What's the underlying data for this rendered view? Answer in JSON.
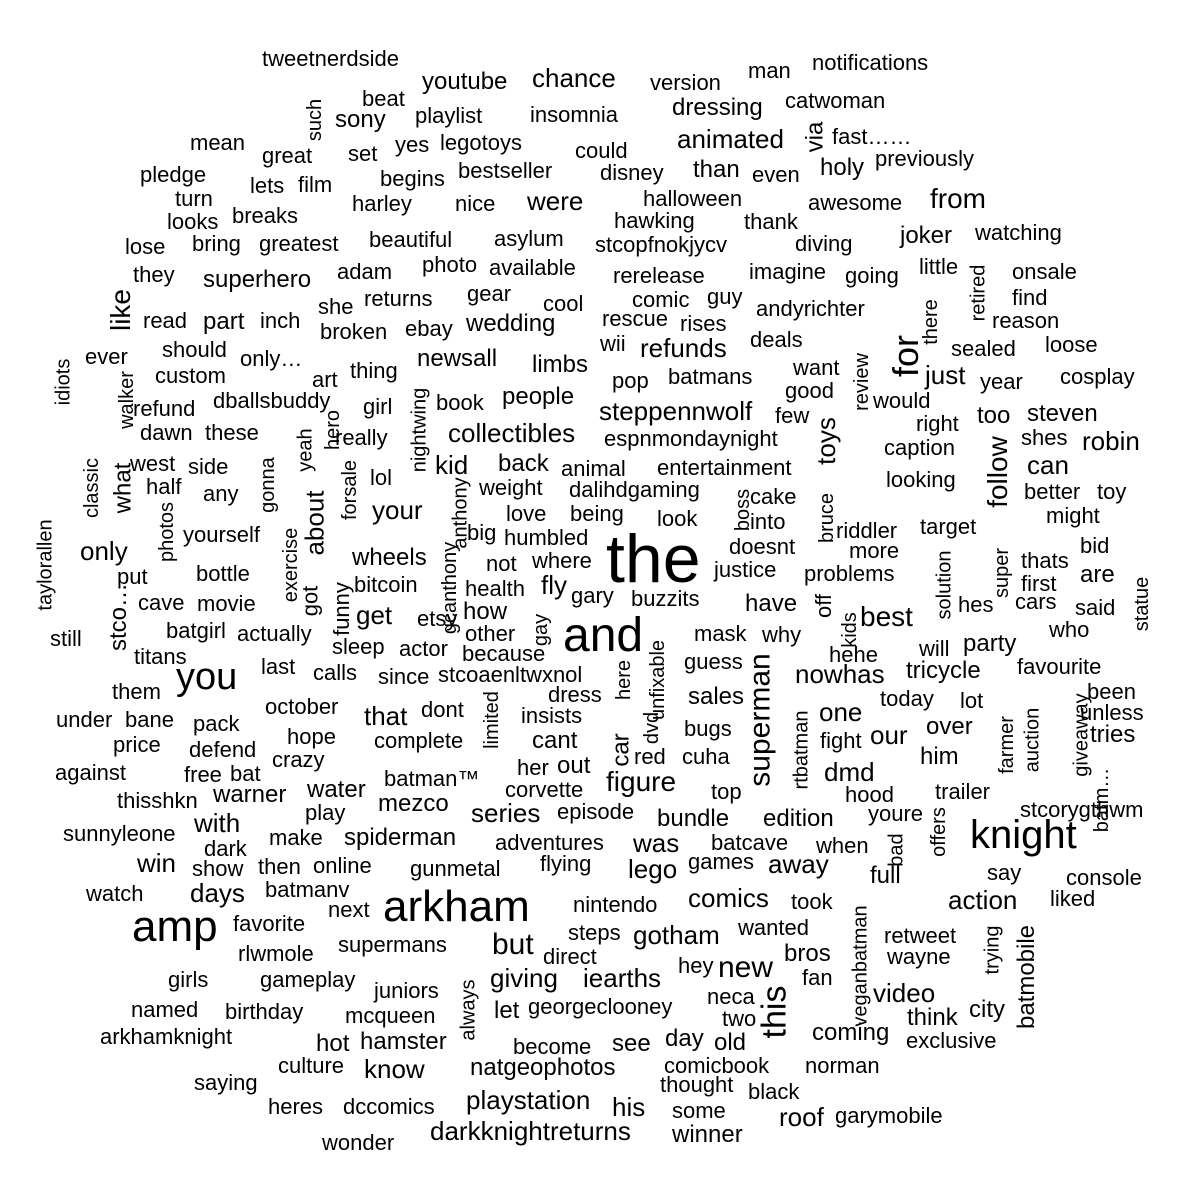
{
  "text_color": "#000000",
  "background_color": "#ffffff",
  "words": [
    "the",
    "and",
    "arkham",
    "amp",
    "knight",
    "you",
    "for",
    "this",
    "superman",
    "new",
    "like",
    "follow",
    "toys",
    "about",
    "video",
    "series",
    "figure",
    "batmobile",
    "darkknightreturns",
    "playstation",
    "youtube",
    "chance",
    "animated",
    "action",
    "giving",
    "comics",
    "refunds",
    "collectibles",
    "steppennwolf",
    "best",
    "gotham",
    "iearths",
    "win",
    "days",
    "robin",
    "kid",
    "can",
    "get",
    "your",
    "from",
    "what",
    "only",
    "tweetnerdside",
    "notifications",
    "man",
    "version",
    "beat",
    "playlist",
    "insomnia",
    "dressing",
    "catwoman",
    "sony",
    "such",
    "mean",
    "great",
    "set",
    "yes",
    "legotoys",
    "could",
    "fast……",
    "previously",
    "pledge",
    "lets",
    "film",
    "begins",
    "bestseller",
    "disney",
    "than",
    "even",
    "holy",
    "turn",
    "harley",
    "nice",
    "were",
    "halloween",
    "awesome",
    "looks",
    "breaks",
    "hawking",
    "thank",
    "lose",
    "bring",
    "greatest",
    "beautiful",
    "asylum",
    "stcopfnokjycv",
    "diving",
    "joker",
    "watching",
    "they",
    "superhero",
    "adam",
    "photo",
    "available",
    "rerelease",
    "imagine",
    "going",
    "little",
    "onsale",
    "retired",
    "she",
    "returns",
    "gear",
    "cool",
    "comic",
    "guy",
    "andyrichter",
    "there",
    "find",
    "read",
    "part",
    "inch",
    "broken",
    "ebay",
    "wedding",
    "rescue",
    "rises",
    "reason",
    "should",
    "only…",
    "newsall",
    "limbs",
    "wii",
    "deals",
    "sealed",
    "loose",
    "ever",
    "custom",
    "art",
    "thing",
    "want",
    "review",
    "just",
    "idiots",
    "walker",
    "refund",
    "dballsbuddy",
    "girl",
    "nightwing",
    "book",
    "people",
    "pop",
    "batmans",
    "good",
    "year",
    "cosplay",
    "dawn",
    "these",
    "hero",
    "really",
    "would",
    "too",
    "steven",
    "west",
    "yeah",
    "espnmondaynight",
    "few",
    "right",
    "shes",
    "half",
    "side",
    "lol",
    "animal",
    "entertainment",
    "caption",
    "any",
    "gonna",
    "back",
    "classic",
    "weight",
    "dalihdgaming",
    "looking",
    "better",
    "toy",
    "forsale",
    "photos",
    "anthony",
    "love",
    "being",
    "look",
    "cake",
    "bruce",
    "into",
    "boss",
    "might",
    "yourself",
    "humbled",
    "riddler",
    "target",
    "exercise",
    "big",
    "taylorallen",
    "wheels",
    "not",
    "where",
    "doesnt",
    "more",
    "bid",
    "thats",
    "put",
    "bitcoin",
    "health",
    "fly",
    "justice",
    "problems",
    "solution",
    "super",
    "first",
    "are",
    "bottle",
    "gcanthony",
    "cave",
    "movie",
    "got",
    "funny",
    "how",
    "gary",
    "buzzits",
    "have",
    "off",
    "kids",
    "hes",
    "cars",
    "said",
    "statue",
    "stco…",
    "batgirl",
    "actually",
    "etsy",
    "other",
    "gay",
    "mask",
    "why",
    "will",
    "party",
    "who",
    "still",
    "sleep",
    "actor",
    "because",
    "unfixable",
    "titans",
    "calls",
    "since",
    "stcoaenltwxnol",
    "guess",
    "hehe",
    "last",
    "nowhas",
    "tricycle",
    "favourite",
    "them",
    "dress",
    "here",
    "sales",
    "today",
    "lot",
    "been",
    "under",
    "bane",
    "pack",
    "october",
    "limited",
    "insists",
    "dvd",
    "one",
    "unless",
    "that",
    "dont",
    "bugs",
    "rtbatman",
    "over",
    "auction",
    "giveaway",
    "price",
    "defend",
    "hope",
    "complete",
    "cant",
    "car",
    "red",
    "cuha",
    "fight",
    "our",
    "tries",
    "crazy",
    "him",
    "farmer",
    "against",
    "free",
    "bat",
    "her",
    "out",
    "water",
    "batman™",
    "corvette",
    "top",
    "dmd",
    "hood",
    "trailer",
    "thisshkn",
    "warner",
    "play",
    "mezco",
    "episode",
    "bundle",
    "edition",
    "youre",
    "bad",
    "stcorygthwm",
    "sunnyleone",
    "dark",
    "make",
    "spiderman",
    "adventures",
    "batcave",
    "was",
    "when",
    "offers",
    "batm…",
    "with",
    "show",
    "then",
    "online",
    "gunmetal",
    "flying",
    "lego",
    "games",
    "away",
    "full",
    "say",
    "console",
    "watch",
    "batmanv",
    "nintendo",
    "took",
    "liked",
    "next",
    "favorite",
    "steps",
    "wanted",
    "veganbatman",
    "retweet",
    "rlwmole",
    "supermans",
    "direct",
    "but",
    "bros",
    "wayne",
    "trying",
    "girls",
    "gameplay",
    "hey",
    "fan",
    "juniors",
    "always",
    "neca",
    "city",
    "named",
    "birthday",
    "mcqueen",
    "let",
    "georgeclooney",
    "two",
    "think",
    "arkhamknight",
    "hot",
    "hamster",
    "become",
    "see",
    "day",
    "old",
    "coming",
    "exclusive",
    "culture",
    "know",
    "natgeophotos",
    "comicbook",
    "norman",
    "saying",
    "thought",
    "black",
    "heres",
    "dccomics",
    "his",
    "some",
    "roof",
    "garymobile",
    "wonder",
    "winner"
  ]
}
